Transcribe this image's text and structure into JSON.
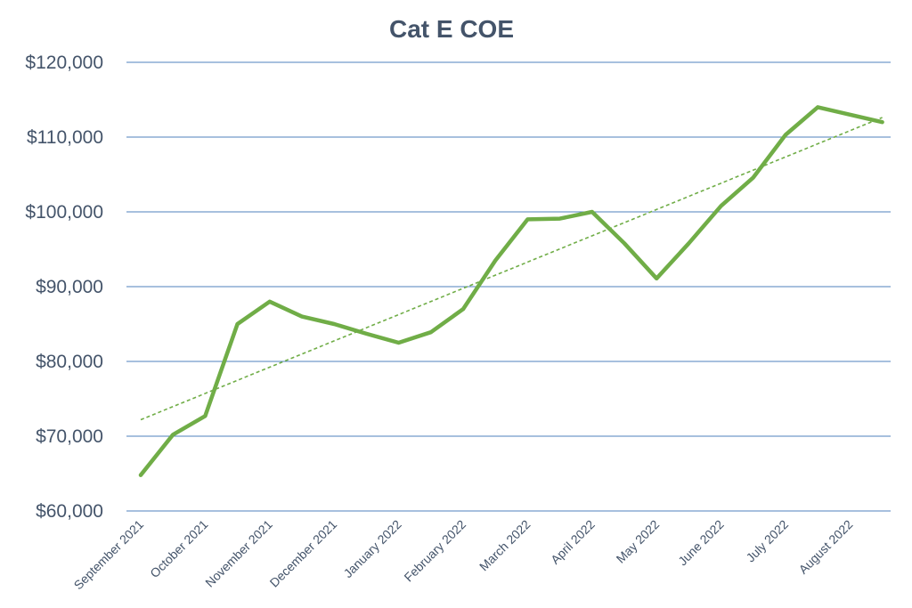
{
  "chart_data": {
    "type": "line",
    "title": "Cat E COE",
    "categories": [
      "September 2021",
      "October 2021",
      "November 2021",
      "December 2021",
      "January 2022",
      "February 2022",
      "March 2022",
      "April 2022",
      "May 2022",
      "June 2022",
      "July 2022",
      "August 2022"
    ],
    "x": [
      0,
      0.5,
      1,
      1.5,
      2,
      2.5,
      3,
      3.5,
      4,
      4.5,
      5,
      5.5,
      6,
      6.5,
      7,
      7.5,
      8,
      8.5,
      9,
      9.5,
      10,
      10.5,
      11,
      11.5
    ],
    "series": [
      {
        "values": [
          64800,
          70200,
          72700,
          85000,
          88000,
          86000,
          85000,
          83700,
          82500,
          83900,
          87000,
          93500,
          99000,
          99100,
          100000,
          95800,
          91100,
          95800,
          100800,
          104600,
          110300,
          114000,
          113000,
          112000
        ],
        "color": "#70ad47"
      }
    ],
    "trendline": {
      "type": "linear",
      "color": "#70ad47",
      "dashed": true
    },
    "ylim": [
      60000,
      120000
    ],
    "yticks": [
      60000,
      70000,
      80000,
      90000,
      100000,
      110000,
      120000
    ],
    "ytick_labels": [
      "$60,000",
      "$70,000",
      "$80,000",
      "$90,000",
      "$100,000",
      "$110,000",
      "$120,000"
    ],
    "grid": true,
    "legend": "none"
  }
}
